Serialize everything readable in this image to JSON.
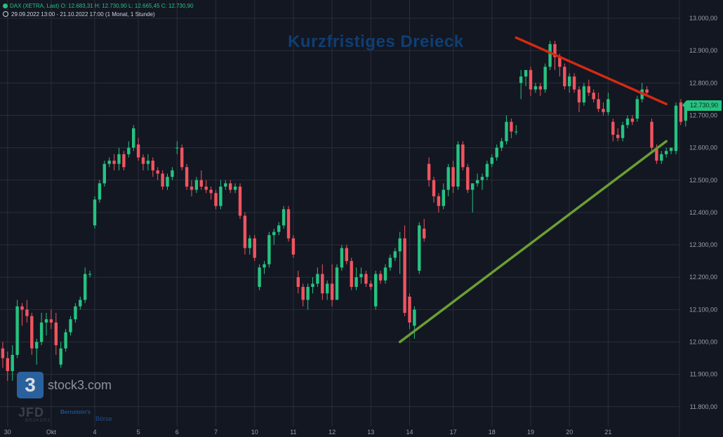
{
  "header": {
    "symbol": "DAX (XETRA, Last)",
    "open": "O: 12.683,31",
    "high": "H: 12.730,90",
    "low": "L: 12.665,45",
    "close": "C: 12.730,90",
    "range": "29.09.2022 13:00 - 21.10.2022 17:00",
    "interval": "(1 Monat, 1 Stunde)"
  },
  "branding": {
    "logo_mark": "3",
    "logo_text": "stock3.com",
    "jfd": "JFD",
    "jfd_sub": "BROKERS",
    "bernstein": "Bernstein's",
    "boerse": "Börse"
  },
  "colors": {
    "background": "#131722",
    "up": "#26c281",
    "down": "#f0545f",
    "resistance": "#d42a12",
    "support": "#6b9e34",
    "grid": "#2a2e39",
    "axis_text": "#9aa0aa"
  },
  "chart_data": {
    "type": "candlestick",
    "title": "Kurzfristiges Dreieck",
    "last_price_label": "12.730,90",
    "last_price": 12730.9,
    "ylim": [
      11780,
      13010
    ],
    "y_ticks": [
      {
        "value": 13000,
        "label": "13.000,00"
      },
      {
        "value": 12900,
        "label": "12.900,00"
      },
      {
        "value": 12800,
        "label": "12.800,00"
      },
      {
        "value": 12700,
        "label": "12.700,00"
      },
      {
        "value": 12600,
        "label": "12.600,00"
      },
      {
        "value": 12500,
        "label": "12.500,00"
      },
      {
        "value": 12400,
        "label": "12.400,00"
      },
      {
        "value": 12300,
        "label": "12.300,00"
      },
      {
        "value": 12200,
        "label": "12.200,00"
      },
      {
        "value": 12100,
        "label": "12.100,00"
      },
      {
        "value": 12000,
        "label": "12.000,00"
      },
      {
        "value": 11900,
        "label": "11.900,00"
      },
      {
        "value": 11800,
        "label": "11.800,00"
      }
    ],
    "x_ticks": [
      {
        "index": 2,
        "label": "30"
      },
      {
        "index": 11,
        "label": "Okt"
      },
      {
        "index": 20,
        "label": "4"
      },
      {
        "index": 29,
        "label": "5"
      },
      {
        "index": 37,
        "label": "6"
      },
      {
        "index": 45,
        "label": "7"
      },
      {
        "index": 53,
        "label": "10"
      },
      {
        "index": 61,
        "label": "11"
      },
      {
        "index": 69,
        "label": "12"
      },
      {
        "index": 77,
        "label": "13"
      },
      {
        "index": 85,
        "label": "14"
      },
      {
        "index": 94,
        "label": "17"
      },
      {
        "index": 102,
        "label": "18"
      },
      {
        "index": 110,
        "label": "19"
      },
      {
        "index": 118,
        "label": "20"
      },
      {
        "index": 126,
        "label": "21"
      }
    ],
    "trendlines": [
      {
        "name": "resistance",
        "from": {
          "index": 107,
          "value": 12940
        },
        "to": {
          "index": 138,
          "value": 12735
        }
      },
      {
        "name": "support",
        "from": {
          "index": 83,
          "value": 12000
        },
        "to": {
          "index": 138,
          "value": 12620
        }
      }
    ],
    "candles": [
      {
        "o": 12060,
        "h": 12090,
        "l": 11940,
        "c": 11980
      },
      {
        "o": 11980,
        "h": 12000,
        "l": 11920,
        "c": 11950
      },
      {
        "o": 11950,
        "h": 11970,
        "l": 11880,
        "c": 11910
      },
      {
        "o": 11910,
        "h": 11990,
        "l": 11880,
        "c": 11960
      },
      {
        "o": 11960,
        "h": 12130,
        "l": 11950,
        "c": 12110
      },
      {
        "o": 12110,
        "h": 12120,
        "l": 12050,
        "c": 12100
      },
      {
        "o": 12100,
        "h": 12130,
        "l": 12060,
        "c": 12080
      },
      {
        "o": 12080,
        "h": 12090,
        "l": 11960,
        "c": 11980
      },
      {
        "o": 11980,
        "h": 12010,
        "l": 11930,
        "c": 12000
      },
      {
        "o": 12000,
        "h": 12090,
        "l": 11990,
        "c": 12060
      },
      {
        "o": 12060,
        "h": 12090,
        "l": 12020,
        "c": 12070
      },
      {
        "o": 12070,
        "h": 12100,
        "l": 12040,
        "c": 12060
      },
      {
        "o": 12060,
        "h": 12090,
        "l": 11960,
        "c": 11990
      },
      {
        "o": 11930,
        "h": 12000,
        "l": 11920,
        "c": 11980
      },
      {
        "o": 11980,
        "h": 12040,
        "l": 11970,
        "c": 12030
      },
      {
        "o": 12030,
        "h": 12080,
        "l": 12020,
        "c": 12070
      },
      {
        "o": 12070,
        "h": 12120,
        "l": 12060,
        "c": 12110
      },
      {
        "o": 12110,
        "h": 12140,
        "l": 12100,
        "c": 12130
      },
      {
        "o": 12130,
        "h": 12230,
        "l": 12120,
        "c": 12210
      },
      {
        "o": 12210,
        "h": 12220,
        "l": 12200,
        "c": 12210
      },
      {
        "o": 12360,
        "h": 12450,
        "l": 12350,
        "c": 12440
      },
      {
        "o": 12440,
        "h": 12500,
        "l": 12430,
        "c": 12490
      },
      {
        "o": 12490,
        "h": 12560,
        "l": 12480,
        "c": 12550
      },
      {
        "o": 12550,
        "h": 12570,
        "l": 12540,
        "c": 12560
      },
      {
        "o": 12560,
        "h": 12580,
        "l": 12530,
        "c": 12550
      },
      {
        "o": 12550,
        "h": 12600,
        "l": 12530,
        "c": 12580
      },
      {
        "o": 12580,
        "h": 12590,
        "l": 12530,
        "c": 12540
      },
      {
        "o": 12580,
        "h": 12620,
        "l": 12570,
        "c": 12600
      },
      {
        "o": 12600,
        "h": 12670,
        "l": 12590,
        "c": 12660
      },
      {
        "o": 12610,
        "h": 12630,
        "l": 12560,
        "c": 12570
      },
      {
        "o": 12570,
        "h": 12580,
        "l": 12530,
        "c": 12550
      },
      {
        "o": 12550,
        "h": 12580,
        "l": 12530,
        "c": 12560
      },
      {
        "o": 12560,
        "h": 12570,
        "l": 12510,
        "c": 12530
      },
      {
        "o": 12530,
        "h": 12540,
        "l": 12500,
        "c": 12520
      },
      {
        "o": 12520,
        "h": 12530,
        "l": 12470,
        "c": 12480
      },
      {
        "o": 12480,
        "h": 12520,
        "l": 12470,
        "c": 12510
      },
      {
        "o": 12510,
        "h": 12540,
        "l": 12500,
        "c": 12530
      },
      {
        "o": 12600,
        "h": 12620,
        "l": 12580,
        "c": 12600
      },
      {
        "o": 12600,
        "h": 12610,
        "l": 12530,
        "c": 12540
      },
      {
        "o": 12540,
        "h": 12550,
        "l": 12470,
        "c": 12480
      },
      {
        "o": 12480,
        "h": 12500,
        "l": 12450,
        "c": 12470
      },
      {
        "o": 12470,
        "h": 12510,
        "l": 12460,
        "c": 12500
      },
      {
        "o": 12500,
        "h": 12530,
        "l": 12470,
        "c": 12480
      },
      {
        "o": 12480,
        "h": 12500,
        "l": 12460,
        "c": 12470
      },
      {
        "o": 12470,
        "h": 12480,
        "l": 12440,
        "c": 12460
      },
      {
        "o": 12460,
        "h": 12470,
        "l": 12410,
        "c": 12420
      },
      {
        "o": 12420,
        "h": 12500,
        "l": 12410,
        "c": 12480
      },
      {
        "o": 12480,
        "h": 12500,
        "l": 12470,
        "c": 12490
      },
      {
        "o": 12490,
        "h": 12500,
        "l": 12460,
        "c": 12470
      },
      {
        "o": 12470,
        "h": 12490,
        "l": 12460,
        "c": 12480
      },
      {
        "o": 12480,
        "h": 12490,
        "l": 12380,
        "c": 12390
      },
      {
        "o": 12390,
        "h": 12400,
        "l": 12270,
        "c": 12290
      },
      {
        "o": 12290,
        "h": 12330,
        "l": 12270,
        "c": 12320
      },
      {
        "o": 12320,
        "h": 12330,
        "l": 12250,
        "c": 12260
      },
      {
        "o": 12170,
        "h": 12240,
        "l": 12160,
        "c": 12230
      },
      {
        "o": 12230,
        "h": 12250,
        "l": 12210,
        "c": 12240
      },
      {
        "o": 12240,
        "h": 12340,
        "l": 12230,
        "c": 12330
      },
      {
        "o": 12330,
        "h": 12350,
        "l": 12300,
        "c": 12340
      },
      {
        "o": 12340,
        "h": 12370,
        "l": 12330,
        "c": 12360
      },
      {
        "o": 12360,
        "h": 12420,
        "l": 12350,
        "c": 12410
      },
      {
        "o": 12410,
        "h": 12420,
        "l": 12310,
        "c": 12320
      },
      {
        "o": 12320,
        "h": 12330,
        "l": 12260,
        "c": 12270
      },
      {
        "o": 12200,
        "h": 12220,
        "l": 12150,
        "c": 12170
      },
      {
        "o": 12170,
        "h": 12180,
        "l": 12110,
        "c": 12130
      },
      {
        "o": 12130,
        "h": 12180,
        "l": 12100,
        "c": 12170
      },
      {
        "o": 12170,
        "h": 12200,
        "l": 12150,
        "c": 12180
      },
      {
        "o": 12180,
        "h": 12230,
        "l": 12170,
        "c": 12210
      },
      {
        "o": 12210,
        "h": 12240,
        "l": 12130,
        "c": 12150
      },
      {
        "o": 12150,
        "h": 12190,
        "l": 12130,
        "c": 12180
      },
      {
        "o": 12180,
        "h": 12240,
        "l": 12110,
        "c": 12130
      },
      {
        "o": 12130,
        "h": 12240,
        "l": 12130,
        "c": 12230
      },
      {
        "o": 12230,
        "h": 12300,
        "l": 12220,
        "c": 12290
      },
      {
        "o": 12290,
        "h": 12300,
        "l": 12240,
        "c": 12250
      },
      {
        "o": 12250,
        "h": 12260,
        "l": 12160,
        "c": 12170
      },
      {
        "o": 12170,
        "h": 12230,
        "l": 12160,
        "c": 12200
      },
      {
        "o": 12200,
        "h": 12230,
        "l": 12180,
        "c": 12210
      },
      {
        "o": 12210,
        "h": 12220,
        "l": 12170,
        "c": 12180
      },
      {
        "o": 12180,
        "h": 12190,
        "l": 12160,
        "c": 12170
      },
      {
        "o": 12110,
        "h": 12220,
        "l": 12100,
        "c": 12210
      },
      {
        "o": 12210,
        "h": 12220,
        "l": 12180,
        "c": 12190
      },
      {
        "o": 12190,
        "h": 12240,
        "l": 12180,
        "c": 12230
      },
      {
        "o": 12230,
        "h": 12270,
        "l": 12220,
        "c": 12260
      },
      {
        "o": 12260,
        "h": 12290,
        "l": 12250,
        "c": 12280
      },
      {
        "o": 12280,
        "h": 12340,
        "l": 12210,
        "c": 12320
      },
      {
        "o": 12320,
        "h": 12360,
        "l": 12080,
        "c": 12090
      },
      {
        "o": 12140,
        "h": 12150,
        "l": 12040,
        "c": 12060
      },
      {
        "o": 12050,
        "h": 12110,
        "l": 12010,
        "c": 12100
      },
      {
        "o": 12220,
        "h": 12370,
        "l": 12210,
        "c": 12360
      },
      {
        "o": 12350,
        "h": 12380,
        "l": 12310,
        "c": 12320
      },
      {
        "o": 12550,
        "h": 12570,
        "l": 12480,
        "c": 12500
      },
      {
        "o": 12500,
        "h": 12510,
        "l": 12430,
        "c": 12450
      },
      {
        "o": 12450,
        "h": 12460,
        "l": 12400,
        "c": 12420
      },
      {
        "o": 12420,
        "h": 12490,
        "l": 12410,
        "c": 12470
      },
      {
        "o": 12470,
        "h": 12550,
        "l": 12450,
        "c": 12540
      },
      {
        "o": 12540,
        "h": 12560,
        "l": 12460,
        "c": 12480
      },
      {
        "o": 12480,
        "h": 12620,
        "l": 12470,
        "c": 12610
      },
      {
        "o": 12610,
        "h": 12620,
        "l": 12530,
        "c": 12540
      },
      {
        "o": 12540,
        "h": 12550,
        "l": 12460,
        "c": 12470
      },
      {
        "o": 12470,
        "h": 12490,
        "l": 12400,
        "c": 12490
      },
      {
        "o": 12490,
        "h": 12520,
        "l": 12480,
        "c": 12500
      },
      {
        "o": 12500,
        "h": 12520,
        "l": 12470,
        "c": 12510
      },
      {
        "o": 12510,
        "h": 12560,
        "l": 12500,
        "c": 12550
      },
      {
        "o": 12550,
        "h": 12580,
        "l": 12540,
        "c": 12570
      },
      {
        "o": 12570,
        "h": 12610,
        "l": 12560,
        "c": 12600
      },
      {
        "o": 12600,
        "h": 12630,
        "l": 12590,
        "c": 12620
      },
      {
        "o": 12620,
        "h": 12700,
        "l": 12610,
        "c": 12680
      },
      {
        "o": 12680,
        "h": 12690,
        "l": 12630,
        "c": 12650
      },
      {
        "o": 12650,
        "h": 12670,
        "l": 12640,
        "c": 12650
      },
      {
        "o": 12800,
        "h": 12840,
        "l": 12750,
        "c": 12820
      },
      {
        "o": 12820,
        "h": 12840,
        "l": 12790,
        "c": 12840
      },
      {
        "o": 12840,
        "h": 12850,
        "l": 12760,
        "c": 12780
      },
      {
        "o": 12780,
        "h": 12800,
        "l": 12770,
        "c": 12790
      },
      {
        "o": 12790,
        "h": 12800,
        "l": 12760,
        "c": 12780
      },
      {
        "o": 12780,
        "h": 12860,
        "l": 12770,
        "c": 12850
      },
      {
        "o": 12850,
        "h": 12930,
        "l": 12840,
        "c": 12920
      },
      {
        "o": 12920,
        "h": 12930,
        "l": 12840,
        "c": 12880
      },
      {
        "o": 12880,
        "h": 12890,
        "l": 12820,
        "c": 12850
      },
      {
        "o": 12850,
        "h": 12860,
        "l": 12780,
        "c": 12790
      },
      {
        "o": 12790,
        "h": 12830,
        "l": 12770,
        "c": 12820
      },
      {
        "o": 12820,
        "h": 12830,
        "l": 12770,
        "c": 12780
      },
      {
        "o": 12780,
        "h": 12790,
        "l": 12710,
        "c": 12740
      },
      {
        "o": 12740,
        "h": 12800,
        "l": 12730,
        "c": 12790
      },
      {
        "o": 12790,
        "h": 12810,
        "l": 12760,
        "c": 12770
      },
      {
        "o": 12770,
        "h": 12780,
        "l": 12740,
        "c": 12750
      },
      {
        "o": 12750,
        "h": 12770,
        "l": 12710,
        "c": 12720
      },
      {
        "o": 12720,
        "h": 12740,
        "l": 12700,
        "c": 12710
      },
      {
        "o": 12710,
        "h": 12770,
        "l": 12700,
        "c": 12750
      },
      {
        "o": 12680,
        "h": 12690,
        "l": 12620,
        "c": 12640
      },
      {
        "o": 12640,
        "h": 12660,
        "l": 12620,
        "c": 12630
      },
      {
        "o": 12630,
        "h": 12680,
        "l": 12620,
        "c": 12670
      },
      {
        "o": 12670,
        "h": 12700,
        "l": 12660,
        "c": 12690
      },
      {
        "o": 12690,
        "h": 12700,
        "l": 12670,
        "c": 12680
      },
      {
        "o": 12690,
        "h": 12760,
        "l": 12680,
        "c": 12750
      },
      {
        "o": 12750,
        "h": 12800,
        "l": 12740,
        "c": 12780
      },
      {
        "o": 12780,
        "h": 12790,
        "l": 12760,
        "c": 12770
      },
      {
        "o": 12680,
        "h": 12690,
        "l": 12590,
        "c": 12600
      },
      {
        "o": 12600,
        "h": 12610,
        "l": 12550,
        "c": 12560
      },
      {
        "o": 12560,
        "h": 12590,
        "l": 12550,
        "c": 12580
      },
      {
        "o": 12580,
        "h": 12600,
        "l": 12570,
        "c": 12590
      },
      {
        "o": 12590,
        "h": 12600,
        "l": 12580,
        "c": 12600
      },
      {
        "o": 12590,
        "h": 12740,
        "l": 12580,
        "c": 12730
      },
      {
        "o": 12740,
        "h": 12750,
        "l": 12670,
        "c": 12680
      },
      {
        "o": 12683.31,
        "h": 12730.9,
        "l": 12665.45,
        "c": 12730.9
      }
    ]
  }
}
